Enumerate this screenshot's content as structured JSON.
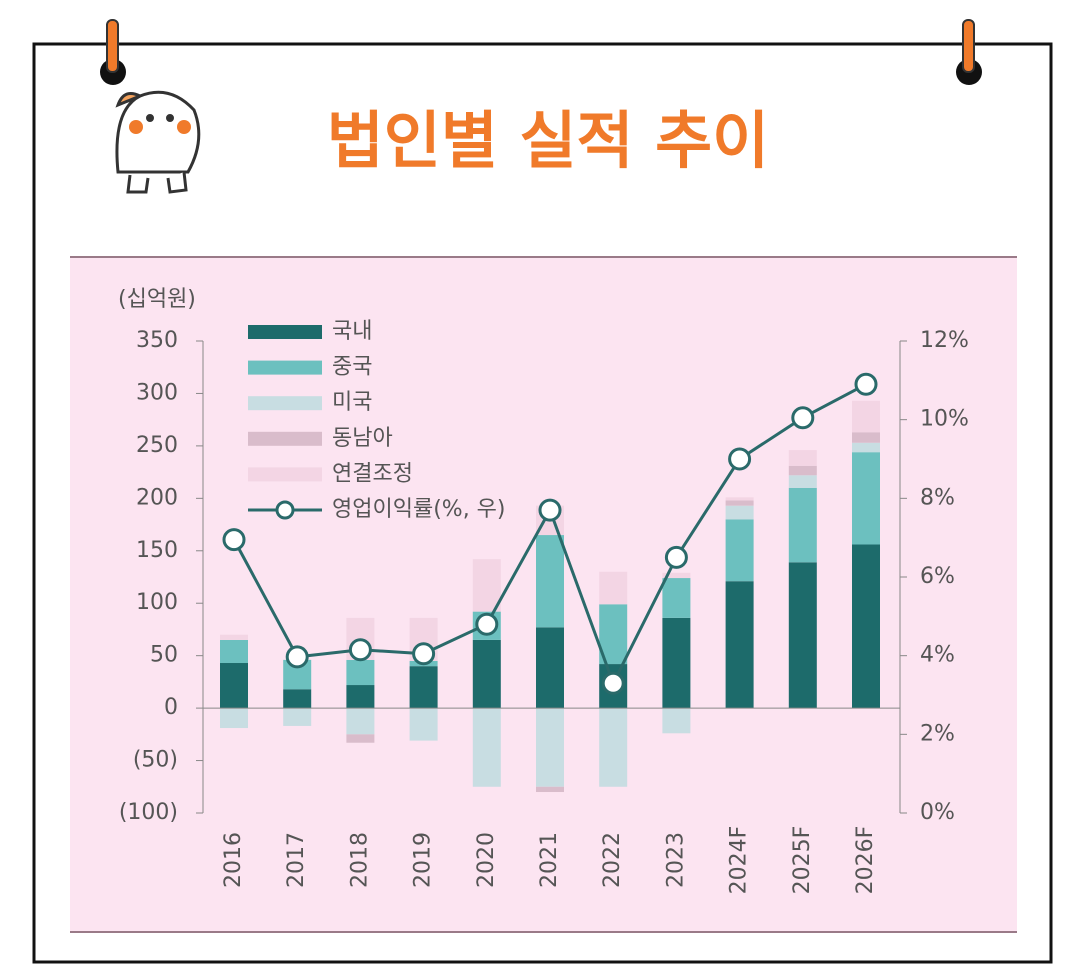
{
  "chart_data": {
    "type": "bar",
    "title": "법인별 실적 추이",
    "y_label": "(십억원)",
    "categories": [
      "2016",
      "2017",
      "2018",
      "2019",
      "2020",
      "2021",
      "2022",
      "2023",
      "2024F",
      "2025F",
      "2026F"
    ],
    "series": [
      {
        "name": "국내",
        "color": "#1d6b6b",
        "values": [
          43,
          18,
          22,
          40,
          65,
          77,
          42,
          86,
          121,
          139,
          156
        ]
      },
      {
        "name": "중국",
        "color": "#6cc0bf",
        "values": [
          22,
          28,
          24,
          5,
          27,
          88,
          57,
          38,
          59,
          71,
          88
        ]
      },
      {
        "name": "미국",
        "color": "#c8dde2",
        "values": [
          -19,
          -17,
          -25,
          -31,
          -75,
          -75,
          -75,
          -24,
          13,
          12,
          9
        ]
      },
      {
        "name": "동남아",
        "color": "#d9bccb",
        "values": [
          0,
          0,
          -8,
          0,
          0,
          -5,
          0,
          0,
          5,
          9,
          10
        ]
      },
      {
        "name": "연결조정",
        "color": "#f3d5e4",
        "values": [
          5,
          0,
          40,
          41,
          50,
          28,
          31,
          5,
          3,
          15,
          30
        ]
      },
      {
        "name": "영업이익률(%, 우)",
        "color": "#2a6a6a",
        "type": "line",
        "axis": "y2",
        "values": [
          6.95,
          3.97,
          4.15,
          4.05,
          4.8,
          7.7,
          3.3,
          6.5,
          9.0,
          10.05,
          10.9
        ]
      }
    ],
    "ylim": [
      -100,
      350
    ],
    "yticks": [
      {
        "value": -100,
        "label": "(100)"
      },
      {
        "value": -50,
        "label": "(50)"
      },
      0,
      50,
      100,
      150,
      200,
      250,
      300,
      350
    ],
    "y2lim": [
      0,
      12
    ],
    "y2ticks": [
      {
        "value": 0,
        "label": "0%"
      },
      {
        "value": 2,
        "label": "2%"
      },
      {
        "value": 4,
        "label": "4%"
      },
      {
        "value": 6,
        "label": "6%"
      },
      {
        "value": 8,
        "label": "8%"
      },
      {
        "value": 10,
        "label": "10%"
      },
      {
        "value": 12,
        "label": "12%"
      }
    ]
  }
}
